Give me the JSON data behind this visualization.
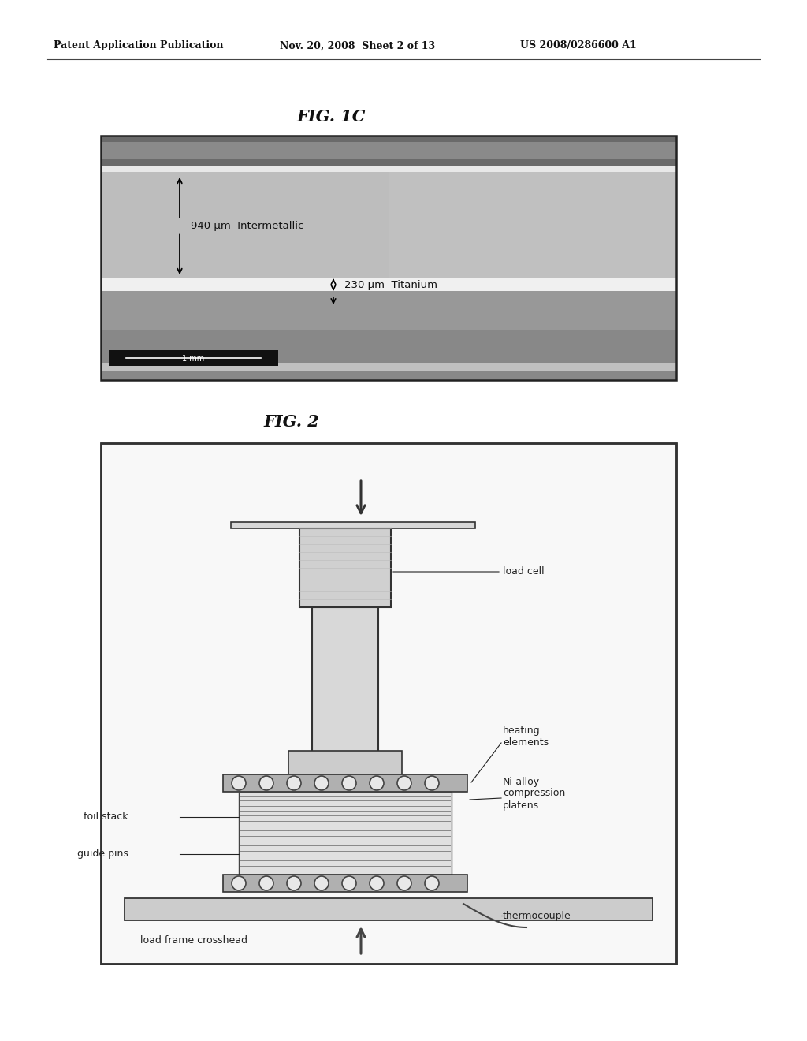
{
  "bg_color": "#ffffff",
  "header_left": "Patent Application Publication",
  "header_mid": "Nov. 20, 2008  Sheet 2 of 13",
  "header_right": "US 2008/0286600 A1",
  "fig1c_title": "FIG. 1C",
  "fig2_title": "FIG. 2",
  "fig1c_labels": {
    "intermetallic": "940 μm  Intermetallic",
    "titanium": "230 μm  Titanium",
    "scale_bar": "1 mm"
  },
  "fig2_labels": {
    "load_cell": "load cell",
    "heating_elements": "heating\nelements",
    "ni_alloy": "Ni-alloy\ncompression\nplatens",
    "foil_stack": "foil stack",
    "guide_pins": "guide pins",
    "thermocouple": "thermocouple",
    "load_frame": "load frame crosshead"
  }
}
